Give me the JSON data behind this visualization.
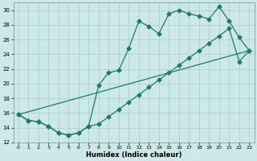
{
  "xlabel": "Humidex (Indice chaleur)",
  "bg_color": "#cce8e8",
  "grid_color": "#aacccc",
  "line_color": "#1a7a6e",
  "xlim": [
    -0.5,
    23.5
  ],
  "ylim": [
    12,
    31
  ],
  "xticks": [
    0,
    1,
    2,
    3,
    4,
    5,
    6,
    7,
    8,
    9,
    10,
    11,
    12,
    13,
    14,
    15,
    16,
    17,
    18,
    19,
    20,
    21,
    22,
    23
  ],
  "yticks": [
    12,
    14,
    16,
    18,
    20,
    22,
    24,
    26,
    28,
    30
  ],
  "series1_x": [
    0,
    1,
    2,
    3,
    4,
    5,
    6,
    7,
    8,
    9,
    10,
    11,
    12,
    13,
    14,
    15,
    16,
    17,
    18,
    19,
    20,
    21,
    22,
    23
  ],
  "series1_y": [
    15.8,
    15.0,
    14.8,
    14.2,
    13.3,
    13.0,
    13.3,
    14.2,
    19.8,
    21.5,
    21.8,
    24.8,
    28.5,
    27.8,
    26.8,
    29.5,
    30.0,
    29.5,
    29.2,
    28.8,
    30.5,
    28.5,
    26.3,
    24.5
  ],
  "series2_x": [
    0,
    1,
    2,
    3,
    4,
    5,
    6,
    7,
    8,
    9,
    10,
    11,
    12,
    13,
    14,
    15,
    16,
    17,
    18,
    19,
    20,
    21,
    22,
    23
  ],
  "series2_y": [
    15.8,
    15.0,
    14.8,
    14.2,
    13.3,
    13.0,
    13.3,
    14.2,
    14.5,
    15.5,
    16.5,
    17.5,
    18.5,
    19.5,
    20.5,
    21.5,
    22.5,
    23.5,
    24.5,
    25.5,
    26.5,
    27.5,
    23.0,
    24.5
  ],
  "series3_x": [
    0,
    23
  ],
  "series3_y": [
    15.8,
    24.5
  ],
  "marker": "D",
  "markersize": 2.5,
  "linewidth": 0.9
}
